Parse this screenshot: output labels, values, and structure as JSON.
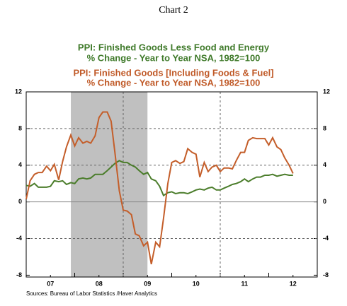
{
  "chart_data": {
    "type": "line",
    "title": "Chart 2",
    "series": [
      {
        "name": "PPI: Finished Goods Less Food and Energy",
        "subtitle": "% Change - Year to Year    NSA, 1982=100",
        "color": "#4b7d2b",
        "values": [
          1.8,
          1.7,
          2.0,
          1.6,
          1.6,
          1.6,
          1.7,
          2.3,
          2.2,
          2.3,
          1.9,
          2.1,
          2.0,
          2.5,
          2.6,
          2.5,
          2.6,
          3.0,
          3.0,
          3.0,
          3.4,
          3.8,
          4.2,
          4.5,
          4.3,
          4.3,
          4.0,
          3.8,
          3.4,
          3.0,
          3.2,
          2.5,
          2.3,
          1.7,
          0.7,
          1.0,
          1.1,
          0.9,
          1.0,
          1.0,
          0.9,
          1.1,
          1.3,
          1.4,
          1.3,
          1.5,
          1.6,
          1.3,
          1.3,
          1.5,
          1.7,
          1.9,
          2.0,
          2.2,
          2.5,
          2.2,
          2.5,
          2.7,
          2.7,
          2.9,
          2.9,
          3.0,
          2.8,
          2.9,
          3.0,
          2.9,
          2.9
        ]
      },
      {
        "name": "PPI: Finished Goods [Including Foods & Fuel]",
        "subtitle": "% Change - Year to Year    NSA, 1982=100",
        "color": "#c45e2a",
        "values": [
          0.3,
          2.3,
          3.0,
          3.2,
          3.2,
          3.9,
          3.4,
          4.1,
          2.4,
          4.4,
          6.0,
          7.3,
          6.1,
          7.0,
          6.4,
          6.6,
          6.4,
          7.2,
          9.2,
          9.8,
          9.8,
          8.8,
          5.3,
          1.2,
          -0.9,
          -1.0,
          -1.4,
          -3.5,
          -3.7,
          -4.8,
          -4.4,
          -6.8,
          -4.4,
          -4.9,
          -1.8,
          2.0,
          4.3,
          4.5,
          4.2,
          4.4,
          5.8,
          5.4,
          5.2,
          2.7,
          4.3,
          3.3,
          3.8,
          4.0,
          3.3,
          3.7,
          3.7,
          3.6,
          4.5,
          5.4,
          5.4,
          6.7,
          7.0,
          6.9,
          6.9,
          6.9,
          6.2,
          7.0,
          6.0,
          5.7,
          4.8,
          4.0,
          3.1
        ]
      }
    ],
    "x": [
      2007.0,
      2007.08,
      2007.17,
      2007.25,
      2007.33,
      2007.42,
      2007.5,
      2007.58,
      2007.67,
      2007.75,
      2007.83,
      2007.92,
      2008.0,
      2008.08,
      2008.17,
      2008.25,
      2008.33,
      2008.42,
      2008.5,
      2008.58,
      2008.67,
      2008.75,
      2008.83,
      2008.92,
      2009.0,
      2009.08,
      2009.17,
      2009.25,
      2009.33,
      2009.42,
      2009.5,
      2009.58,
      2009.67,
      2009.75,
      2009.83,
      2009.92,
      2010.0,
      2010.08,
      2010.17,
      2010.25,
      2010.33,
      2010.42,
      2010.5,
      2010.58,
      2010.67,
      2010.75,
      2010.83,
      2010.92,
      2011.0,
      2011.08,
      2011.17,
      2011.25,
      2011.33,
      2011.42,
      2011.5,
      2011.58,
      2011.67,
      2011.75,
      2011.83,
      2011.92,
      2012.0,
      2012.08,
      2012.17,
      2012.25,
      2012.33,
      2012.42,
      2012.5
    ],
    "xlim": [
      2007,
      2013
    ],
    "xticks": [
      {
        "value": 2007.5,
        "label": "07"
      },
      {
        "value": 2008.5,
        "label": "08"
      },
      {
        "value": 2009.5,
        "label": "09"
      },
      {
        "value": 2010.5,
        "label": "10"
      },
      {
        "value": 2011.5,
        "label": "11"
      },
      {
        "value": 2012.5,
        "label": "12"
      }
    ],
    "ylim": [
      -8.2,
      12
    ],
    "yticks": [
      -8,
      -4,
      0,
      4,
      8,
      12
    ],
    "recession": [
      2007.92,
      2009.5
    ],
    "grid": true,
    "source": "Sources: Bureau of Labor Statistics /Haver Analytics"
  }
}
